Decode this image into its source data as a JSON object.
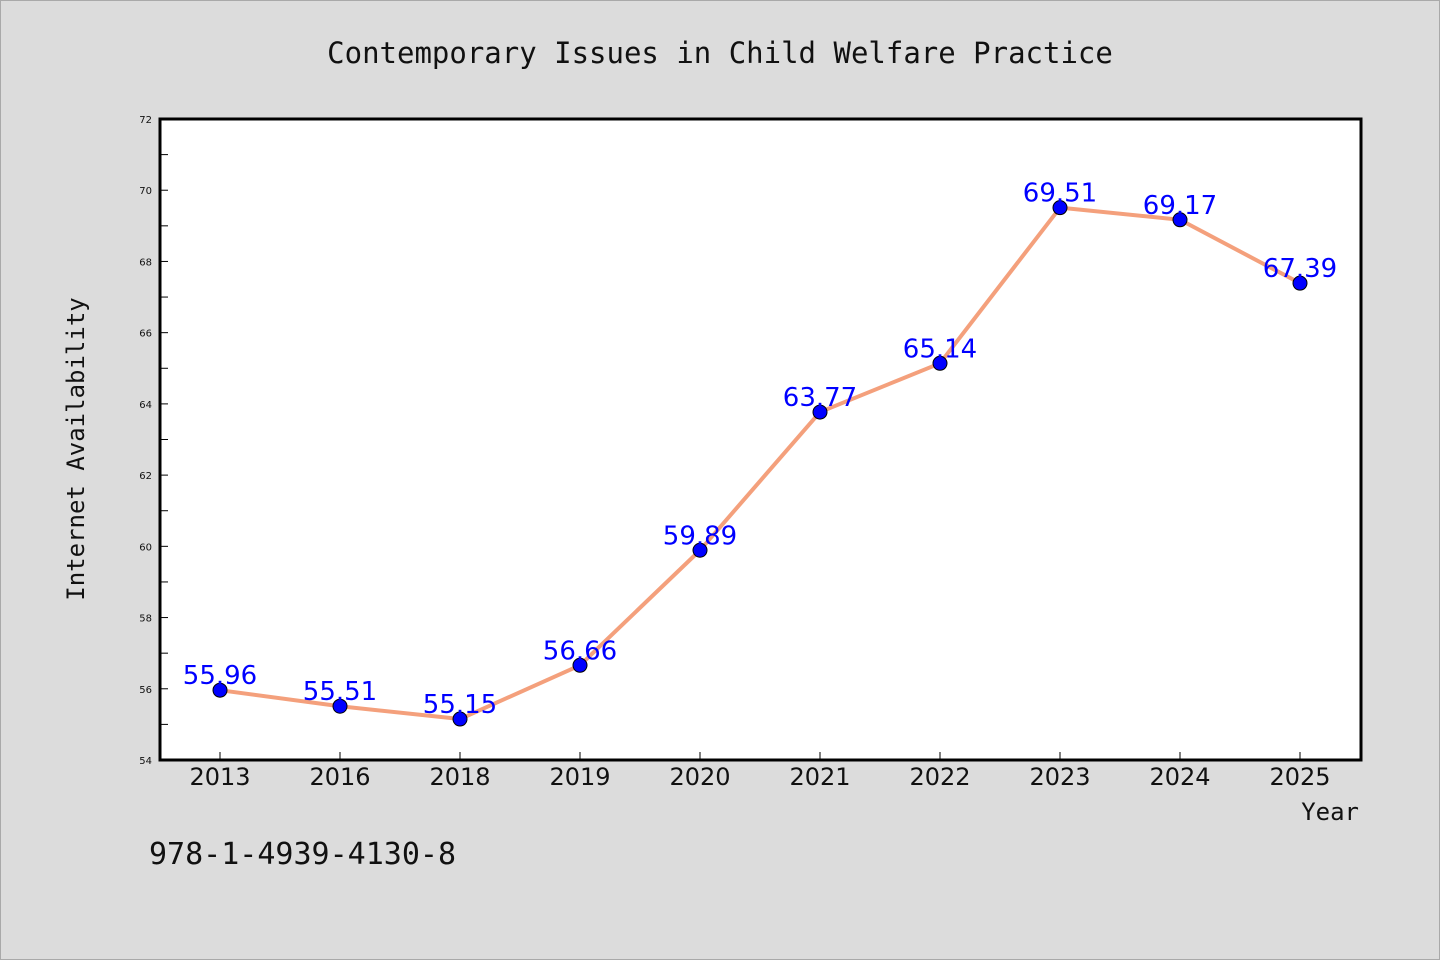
{
  "chart_data": {
    "type": "line",
    "title": "Contemporary Issues in Child Welfare Practice",
    "xlabel": "Year",
    "ylabel": "Internet Availability",
    "categories": [
      "2013",
      "2016",
      "2018",
      "2019",
      "2020",
      "2021",
      "2022",
      "2023",
      "2024",
      "2025"
    ],
    "values": [
      55.96,
      55.51,
      55.15,
      56.66,
      59.89,
      63.77,
      65.14,
      69.51,
      69.17,
      67.39
    ],
    "ylim": [
      54,
      72
    ],
    "yticks": [
      54,
      56,
      58,
      60,
      62,
      64,
      66,
      68,
      70,
      72
    ],
    "grid": false,
    "legend": "none",
    "line_color": "#f4a07c",
    "marker_color": "#0000ff",
    "label_color": "#0000ff"
  },
  "footer": {
    "isbn": "978-1-4939-4130-8"
  }
}
